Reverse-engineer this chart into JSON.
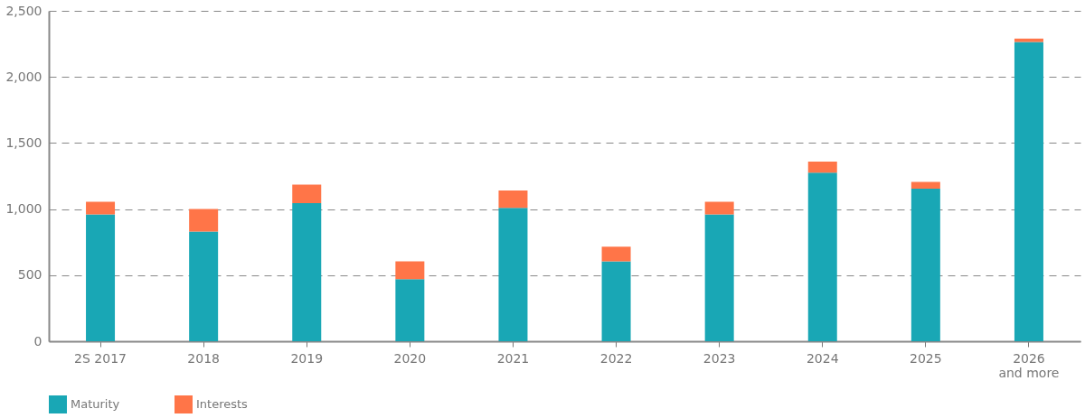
{
  "chart_data": {
    "type": "bar",
    "stacked": true,
    "categories": [
      "2S 2017",
      "2018",
      "2019",
      "2020",
      "2021",
      "2022",
      "2023",
      "2024",
      "2025",
      "2026\nand more"
    ],
    "series": [
      {
        "name": "Maturity",
        "color": "#19a7b5",
        "values": [
          960,
          830,
          1045,
          470,
          1010,
          605,
          960,
          1275,
          1155,
          2265
        ]
      },
      {
        "name": "Interests",
        "color": "#ff7548",
        "values": [
          95,
          170,
          140,
          135,
          130,
          110,
          95,
          85,
          50,
          25
        ]
      }
    ],
    "ylim": [
      0,
      2500
    ],
    "yticks": [
      {
        "value": 0,
        "label": "0"
      },
      {
        "value": 500,
        "label": "500"
      },
      {
        "value": 1000,
        "label": "1,000"
      },
      {
        "value": 1500,
        "label": "1,500"
      },
      {
        "value": 2000,
        "label": "2,000"
      },
      {
        "value": 2500,
        "label": "2,500"
      }
    ],
    "grid": "y",
    "legend": "bottom"
  }
}
